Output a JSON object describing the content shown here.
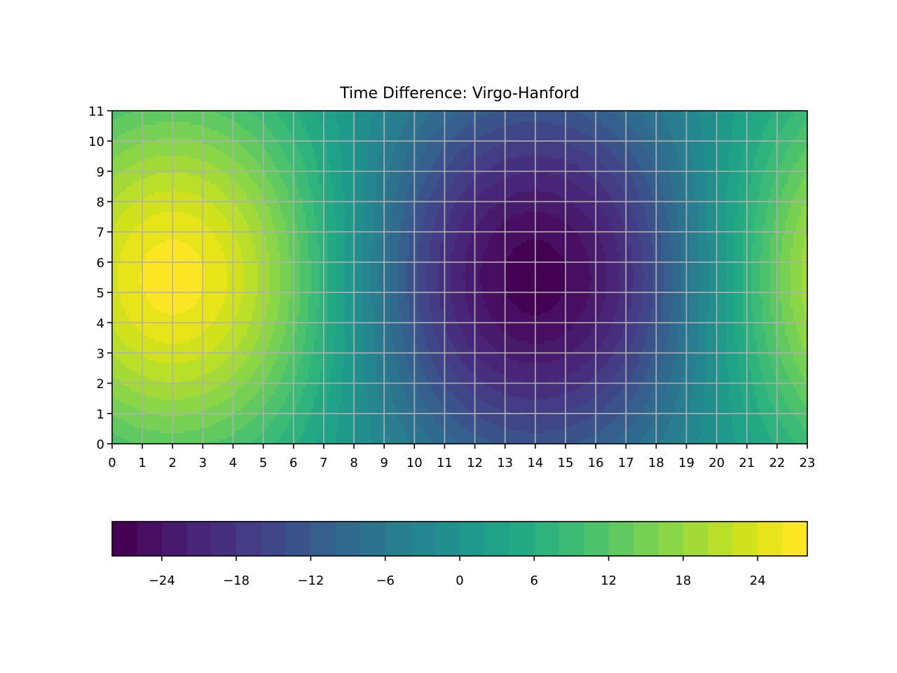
{
  "chart_data": {
    "type": "heatmap",
    "subtype": "filled-contour",
    "title": "Time Difference: Virgo-Hanford",
    "xlabel": "",
    "ylabel": "",
    "xlim": [
      0,
      23
    ],
    "ylim": [
      0,
      11
    ],
    "x_ticks": [
      "0",
      "1",
      "2",
      "3",
      "4",
      "5",
      "6",
      "7",
      "8",
      "9",
      "10",
      "11",
      "12",
      "13",
      "14",
      "15",
      "16",
      "17",
      "18",
      "19",
      "20",
      "21",
      "22",
      "23"
    ],
    "y_ticks": [
      "0",
      "1",
      "2",
      "3",
      "4",
      "5",
      "6",
      "7",
      "8",
      "9",
      "10",
      "11"
    ],
    "grid": true,
    "colormap": "viridis",
    "levels": [
      -28,
      -26,
      -24,
      -22,
      -20,
      -18,
      -16,
      -14,
      -12,
      -10,
      -8,
      -6,
      -4,
      -2,
      0,
      2,
      4,
      6,
      8,
      10,
      12,
      14,
      16,
      18,
      20,
      22,
      24,
      26,
      28
    ],
    "colorbar": {
      "orientation": "horizontal",
      "placement": "bottom",
      "range": [
        -28,
        28
      ],
      "ticks": [
        "−24",
        "−18",
        "−12",
        "−6",
        "0",
        "6",
        "12",
        "18",
        "24"
      ],
      "tick_values": [
        -24,
        -18,
        -12,
        -6,
        0,
        6,
        12,
        18,
        24
      ]
    },
    "field": {
      "maximum": {
        "x": 2,
        "y": 5.5,
        "value": 27
      },
      "minimum": {
        "x": 14,
        "y": 5,
        "value": -27
      },
      "value_at_edges_approx": 2
    }
  },
  "colors": {
    "grid": "#b0b0b0",
    "viridis": [
      "#440154",
      "#46085c",
      "#471063",
      "#481769",
      "#481d6f",
      "#482475",
      "#472a7a",
      "#46307e",
      "#453882",
      "#433e85",
      "#404588",
      "#3e4989",
      "#3b528b",
      "#38598c",
      "#355f8d",
      "#32658e",
      "#2f6c8e",
      "#2d718e",
      "#2a788e",
      "#287d8e",
      "#26828e",
      "#24878e",
      "#228d8d",
      "#21918c",
      "#1f978b",
      "#1e9c89",
      "#1fa188",
      "#21a685",
      "#25ab82",
      "#2ab07f",
      "#31b57b",
      "#38b977",
      "#42be71",
      "#4cc26c",
      "#56c667",
      "#62cb5f",
      "#6ece58",
      "#7ad151",
      "#86d549",
      "#95d840",
      "#a2da37",
      "#b0dd2f",
      "#bddf26",
      "#cae11f",
      "#d8e219",
      "#e5e419",
      "#f1e51d",
      "#fde725"
    ]
  }
}
